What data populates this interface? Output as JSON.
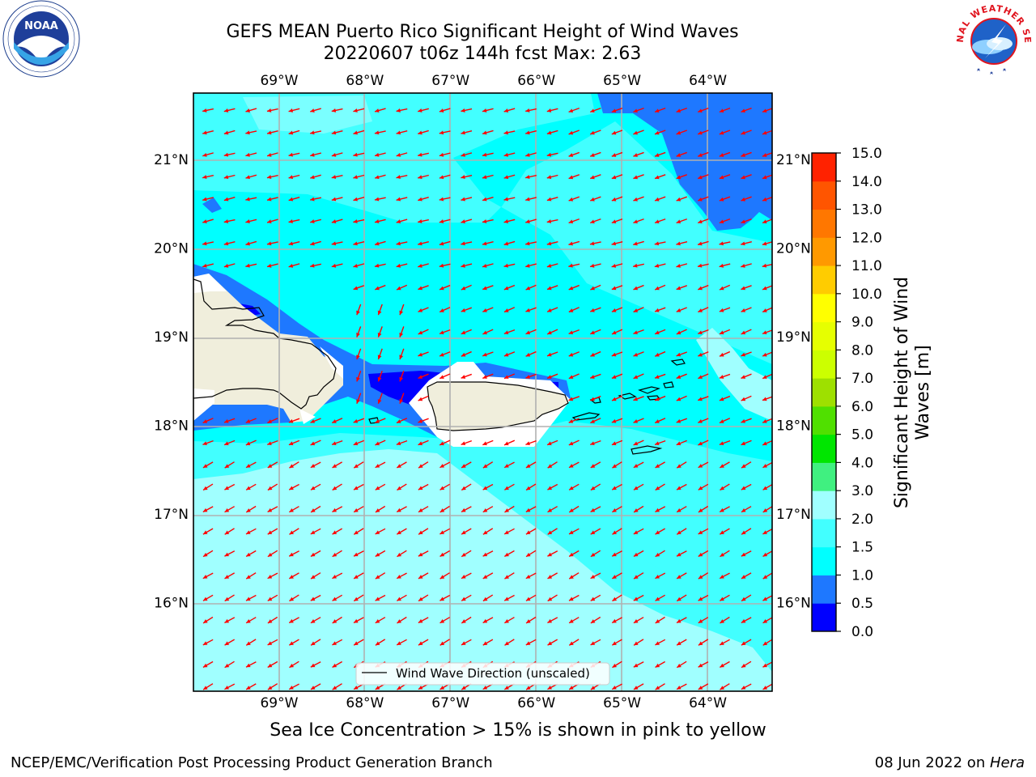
{
  "title": {
    "line1": "GEFS MEAN Puerto Rico Significant Height of Wind Waves",
    "line2": "20220607 t06z 144h fcst   Max: 2.63"
  },
  "logos": {
    "left": "noaa-logo",
    "right": "nws-logo",
    "left_text": "NOAA",
    "right_text": "NATIONAL WEATHER SERVICE"
  },
  "map": {
    "lon_ticks": [
      "69°W",
      "68°W",
      "67°W",
      "66°W",
      "65°W",
      "64°W"
    ],
    "lat_ticks": [
      "21°N",
      "20°N",
      "19°N",
      "18°N",
      "17°N",
      "16°N"
    ],
    "lon_range": [
      -70,
      -63.25
    ],
    "lat_range": [
      15,
      21.75
    ],
    "grid": true,
    "vector_color": "#ff0000",
    "coast_color": "#000000",
    "land_color": "#f0eedc"
  },
  "legend": {
    "label": "Wind Wave Direction (unscaled)",
    "placement": "bottom-center"
  },
  "colorbar": {
    "label": "Significant Height of Wind Waves [m]",
    "ticks": [
      "0.0",
      "0.5",
      "1.0",
      "1.5",
      "2.0",
      "3.0",
      "4.0",
      "5.0",
      "6.0",
      "7.0",
      "8.0",
      "9.0",
      "10.0",
      "11.0",
      "12.0",
      "13.0",
      "14.0",
      "15.0"
    ],
    "colors": [
      "#0000ff",
      "#1e78ff",
      "#00ffff",
      "#42ffff",
      "#a0ffff",
      "#40f080",
      "#00e600",
      "#50e000",
      "#9ee000",
      "#ccff00",
      "#e6ff00",
      "#ffff00",
      "#ffcc00",
      "#ff9900",
      "#ff7700",
      "#ff5500",
      "#ff2200"
    ]
  },
  "footer": {
    "ice_note": "Sea Ice Concentration > 15% is shown in pink to yellow",
    "credit": "NCEP/EMC/Verification Post Processing Product Generation Branch",
    "date": "08 Jun 2022 on ",
    "host": "Hera"
  }
}
